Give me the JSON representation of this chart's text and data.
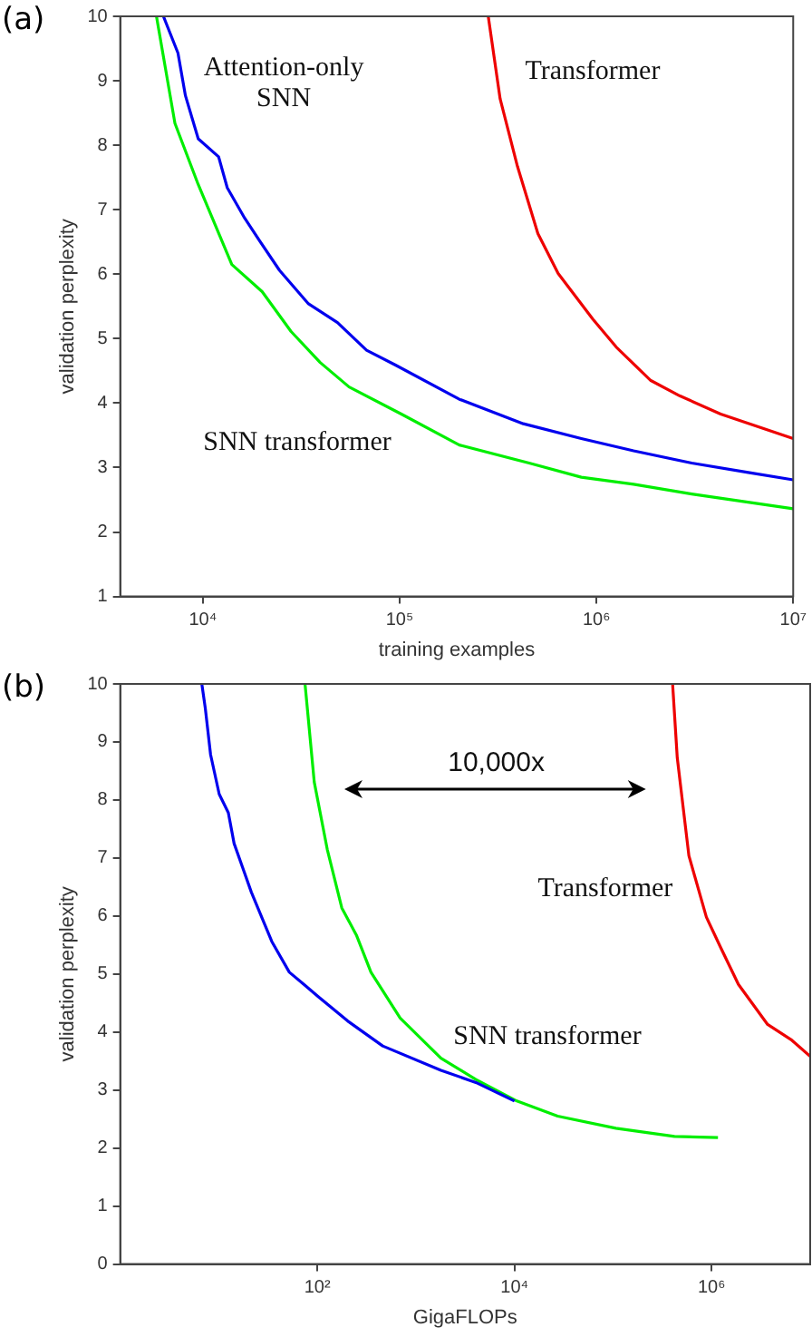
{
  "chart_data": [
    {
      "type": "line",
      "title": "(a)",
      "xlabel": "training examples",
      "ylabel": "validation perplexity",
      "log": "x",
      "xlim": [
        3800,
        10000000
      ],
      "xticks": [
        {
          "value": 10000,
          "label": "10⁴"
        },
        {
          "value": 100000,
          "label": "10⁵"
        },
        {
          "value": 1000000,
          "label": "10⁶"
        },
        {
          "value": 10000000,
          "label": "10⁷"
        }
      ],
      "ylim": [
        1,
        10
      ],
      "yticks": [
        1,
        2,
        3,
        4,
        5,
        6,
        7,
        8,
        9,
        10
      ],
      "series": [
        {
          "name": "SNN transformer",
          "color": "#00ee00",
          "x": [
            5808,
            7210,
            9470,
            14030,
            20000,
            28070,
            39440,
            55340,
            102000,
            201000,
            455000,
            838000,
            1545000,
            3050000,
            10000000
          ],
          "values": [
            10,
            8.34,
            7.39,
            6.15,
            5.73,
            5.11,
            4.63,
            4.25,
            3.83,
            3.35,
            3.07,
            2.85,
            2.74,
            2.59,
            2.36
          ]
        },
        {
          "name": "Attention-only\nSNN",
          "color": "#0000ee",
          "x": [
            6300,
            7470,
            8150,
            9470,
            12020,
            13300,
            16300,
            19300,
            24500,
            34400,
            48300,
            67900,
            95300,
            201000,
            425000,
            838000,
            1545000,
            3050000,
            6000000,
            10000000
          ],
          "values": [
            10,
            9.43,
            8.77,
            8.1,
            7.82,
            7.34,
            6.87,
            6.53,
            6.06,
            5.54,
            5.25,
            4.82,
            4.59,
            4.06,
            3.68,
            3.45,
            3.26,
            3.07,
            2.92,
            2.81
          ]
        },
        {
          "name": "Transformer",
          "color": "#ee0000",
          "x": [
            282000,
            324000,
            397000,
            504000,
            639000,
            960000,
            1260000,
            1890000,
            2660000,
            4280000,
            10000000
          ],
          "values": [
            10,
            8.72,
            7.67,
            6.63,
            6.01,
            5.3,
            4.87,
            4.35,
            4.11,
            3.83,
            3.45
          ]
        }
      ],
      "legend": false
    },
    {
      "type": "line",
      "title": "(b)",
      "xlabel": "GigaFLOPs",
      "ylabel": "validation perplexity",
      "log": "x",
      "xlim": [
        1,
        10000000
      ],
      "xticks": [
        {
          "value": 100,
          "label": "10²"
        },
        {
          "value": 10000,
          "label": "10⁴"
        },
        {
          "value": 1000000,
          "label": "10⁶"
        }
      ],
      "ylim": [
        0,
        10
      ],
      "yticks": [
        0,
        1,
        2,
        3,
        4,
        5,
        6,
        7,
        8,
        9,
        10
      ],
      "series": [
        {
          "color": "#0000ee",
          "x": [
            6.73,
            7.3,
            8.26,
            10.1,
            12.5,
            14.3,
            17.5,
            21.4,
            34.5,
            52,
            73,
            102,
            203,
            460,
            1795,
            4060,
            10000
          ],
          "values": [
            10,
            9.58,
            8.78,
            8.1,
            7.78,
            7.25,
            6.83,
            6.41,
            5.56,
            5.03,
            4.82,
            4.61,
            4.19,
            3.76,
            3.34,
            3.13,
            2.81
          ]
        },
        {
          "name": "SNN transformer",
          "color": "#00ee00",
          "x": [
            75,
            93,
            126,
            177,
            249,
            350,
            692,
            1795,
            4060,
            10570,
            27400,
            107000,
            420000,
            1160000
          ],
          "values": [
            10,
            8.31,
            7.15,
            6.14,
            5.67,
            5.03,
            4.24,
            3.55,
            3.18,
            2.81,
            2.55,
            2.34,
            2.2,
            2.18
          ]
        },
        {
          "name": "Transformer",
          "color": "#ee0000",
          "x": [
            402000,
            448000,
            588000,
            885000,
            1240000,
            1870000,
            3700000,
            6380000,
            10000000
          ],
          "values": [
            10,
            8.73,
            7.04,
            5.98,
            5.45,
            4.82,
            4.13,
            3.87,
            3.58
          ]
        }
      ],
      "legend": false,
      "annotations": [
        "10,000x"
      ]
    }
  ]
}
